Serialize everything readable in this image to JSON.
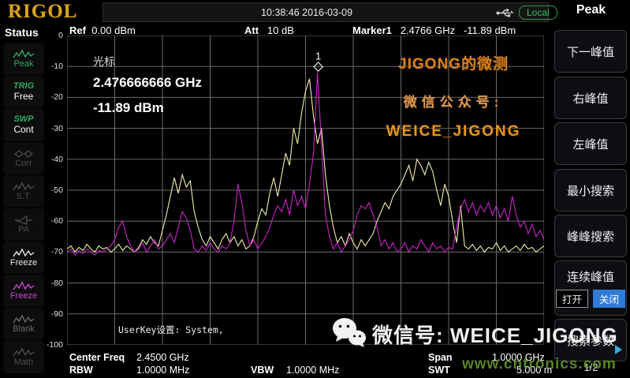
{
  "brand": "RIGOL",
  "topbar": {
    "time": "10:38:46 2016-03-09",
    "local_label": "Local",
    "usb_icon": "usb-icon"
  },
  "status_panel": {
    "title": "Status",
    "items": [
      {
        "kind": "icon",
        "icon": "waveform-icon",
        "label": "Peak",
        "color": "#2fae5f"
      },
      {
        "kind": "text",
        "label": "TRIG",
        "value": "Free",
        "color": "#2fae5f"
      },
      {
        "kind": "text",
        "label": "SWP",
        "value": "Cont",
        "color": "#2fae5f"
      },
      {
        "kind": "icon",
        "icon": "corr-icon",
        "label": "Corr",
        "color": "#4d4d4d"
      },
      {
        "kind": "icon",
        "icon": "waveform-icon",
        "label": "S.T.",
        "color": "#4d4d4d"
      },
      {
        "kind": "icon",
        "icon": "diode-icon",
        "label": "PA",
        "color": "#4d4d4d"
      },
      {
        "kind": "icon",
        "icon": "waveform-icon",
        "label": "Freeze",
        "color": "#e8e8e8"
      },
      {
        "kind": "icon",
        "icon": "waveform-icon",
        "label": "Freeze",
        "color": "#cc44cc"
      },
      {
        "kind": "icon",
        "icon": "waveform-icon",
        "label": "Blank",
        "color": "#6a6a6a"
      },
      {
        "kind": "icon",
        "icon": "waveform-icon",
        "label": "Math",
        "color": "#4d4d4d"
      }
    ]
  },
  "header": {
    "ref_label": "Ref",
    "ref_value": "0.00 dBm",
    "att_label": "Att",
    "att_value": "10 dB",
    "marker_label": "Marker1",
    "marker_freq": "2.4766 GHz",
    "marker_ampl": "-11.89 dBm"
  },
  "cursor_readout": {
    "title": "光标",
    "freq": "2.476666666 GHz",
    "ampl": "-11.89 dBm"
  },
  "overlay_text": {
    "line1": "JIGONG的微测",
    "line2": "微信公众号:",
    "line3": "WEICE_JIGONG"
  },
  "userkey_text": "UserKey设置:    System,",
  "menu_panel": {
    "title": "Peak",
    "buttons": [
      {
        "label": "下一峰值"
      },
      {
        "label": "右峰值"
      },
      {
        "label": "左峰值"
      },
      {
        "label": "最小搜索"
      },
      {
        "label": "峰峰搜索"
      },
      {
        "label": "连续峰值",
        "toggle_on": "打开",
        "toggle_off": "关闭",
        "active": "off"
      },
      {
        "label": "搜索参数",
        "arrow": true
      }
    ],
    "page": "1/2"
  },
  "bottom_bar": {
    "center_label": "Center Freq",
    "center_value": "2.4500 GHz",
    "rbw_label": "RBW",
    "rbw_value": "1.0000 MHz",
    "vbw_label": "VBW",
    "vbw_value": "1.0000 MHz",
    "span_label": "Span",
    "span_value": "1.0000 GHz",
    "swt_label": "SWT",
    "swt_value": "5.000 ms"
  },
  "watermarks": {
    "wechat_icon": "wechat-icon",
    "wechat": "微信号: WEICE_JIGONG",
    "site": "www.cntronics.com"
  },
  "colors": {
    "brand_gold": "#d9a41e",
    "status_green": "#2fae5f",
    "trace1_yellow": "#f2eeaa",
    "trace2_magenta": "#cc22cc",
    "toggle_blue": "#2f7bd9",
    "overlay_orange": "#e8941f",
    "site_green": "#64962d",
    "grid_gray": "#7d7d7d"
  },
  "chart_data": {
    "type": "line",
    "title": "Spectrum trace",
    "x_axis": {
      "start_ghz": 1.95,
      "end_ghz": 2.95,
      "center_ghz": 2.45,
      "span_ghz": 1.0,
      "divisions": 10
    },
    "y_axis": {
      "unit": "dBm",
      "ref_dbm": 0,
      "min_dbm": -100,
      "db_per_div": 10,
      "ticks": [
        "0",
        "-10",
        "-20",
        "-30",
        "-40",
        "-50",
        "-60",
        "-70",
        "-80",
        "-90",
        "-100"
      ]
    },
    "grid": true,
    "marker": {
      "id": "1",
      "freq_ghz": 2.4766,
      "ampl_dbm": -11.89
    },
    "series": [
      {
        "name": "trace1-yellow",
        "color": "#f2eeaa",
        "values": [
          -69,
          -68,
          -70,
          -68.5,
          -69.5,
          -67.5,
          -69,
          -70,
          -68,
          -69,
          -68.5,
          -70,
          -69,
          -67.5,
          -69.5,
          -68,
          -69,
          -70,
          -68.5,
          -66,
          -67.5,
          -65,
          -67,
          -68,
          -63,
          -58,
          -52,
          -46,
          -51,
          -45,
          -49,
          -47,
          -57,
          -62,
          -66,
          -68,
          -65,
          -67,
          -69,
          -66,
          -64,
          -67,
          -65,
          -68,
          -66,
          -69,
          -68,
          -65,
          -60,
          -56,
          -58,
          -51,
          -46,
          -52,
          -45,
          -38,
          -42,
          -30,
          -35,
          -25,
          -18,
          -14,
          -26,
          -35,
          -30,
          -45,
          -55,
          -62,
          -67,
          -65,
          -68,
          -64,
          -67,
          -69,
          -66,
          -68,
          -66,
          -64,
          -60,
          -57,
          -54,
          -56,
          -52,
          -50,
          -48,
          -45,
          -42,
          -47,
          -40,
          -42,
          -45,
          -41,
          -44,
          -50,
          -55,
          -48,
          -52,
          -60,
          -67,
          -55,
          -68,
          -69,
          -67.5,
          -69.5,
          -68,
          -70,
          -68.5,
          -69,
          -67,
          -69.5,
          -68,
          -70,
          -69,
          -68,
          -69.5,
          -67.5,
          -69,
          -68.5,
          -70,
          -69,
          -68
        ]
      },
      {
        "name": "trace2-magenta",
        "color": "#cc22cc",
        "values": [
          -70,
          -69,
          -71,
          -69.5,
          -70.5,
          -69,
          -70,
          -71,
          -69.5,
          -70,
          -69,
          -68,
          -66,
          -62,
          -60,
          -65,
          -68,
          -70,
          -69,
          -67,
          -70,
          -68,
          -66,
          -69,
          -68,
          -66,
          -64,
          -67,
          -62,
          -57,
          -59,
          -63,
          -69,
          -70,
          -68,
          -69.5,
          -67,
          -69,
          -70,
          -68,
          -69,
          -67,
          -60,
          -48,
          -54,
          -63,
          -68,
          -66,
          -69,
          -67,
          -65,
          -62,
          -58,
          -55,
          -57,
          -53,
          -58,
          -50,
          -55,
          -52,
          -56,
          -48,
          -38,
          -12,
          -35,
          -58,
          -65,
          -69,
          -67,
          -70,
          -68,
          -66,
          -63,
          -58,
          -55,
          -56,
          -54,
          -58,
          -62,
          -68,
          -66,
          -69,
          -67,
          -70,
          -69,
          -67,
          -70,
          -68,
          -69,
          -66,
          -68,
          -70,
          -67,
          -69,
          -68,
          -70,
          -68.5,
          -69,
          -62,
          -56,
          -53,
          -57,
          -54,
          -58,
          -55,
          -57,
          -54,
          -58,
          -55,
          -59,
          -56,
          -60,
          -52,
          -58,
          -62,
          -60,
          -64,
          -61,
          -65,
          -63,
          -66
        ]
      }
    ]
  }
}
